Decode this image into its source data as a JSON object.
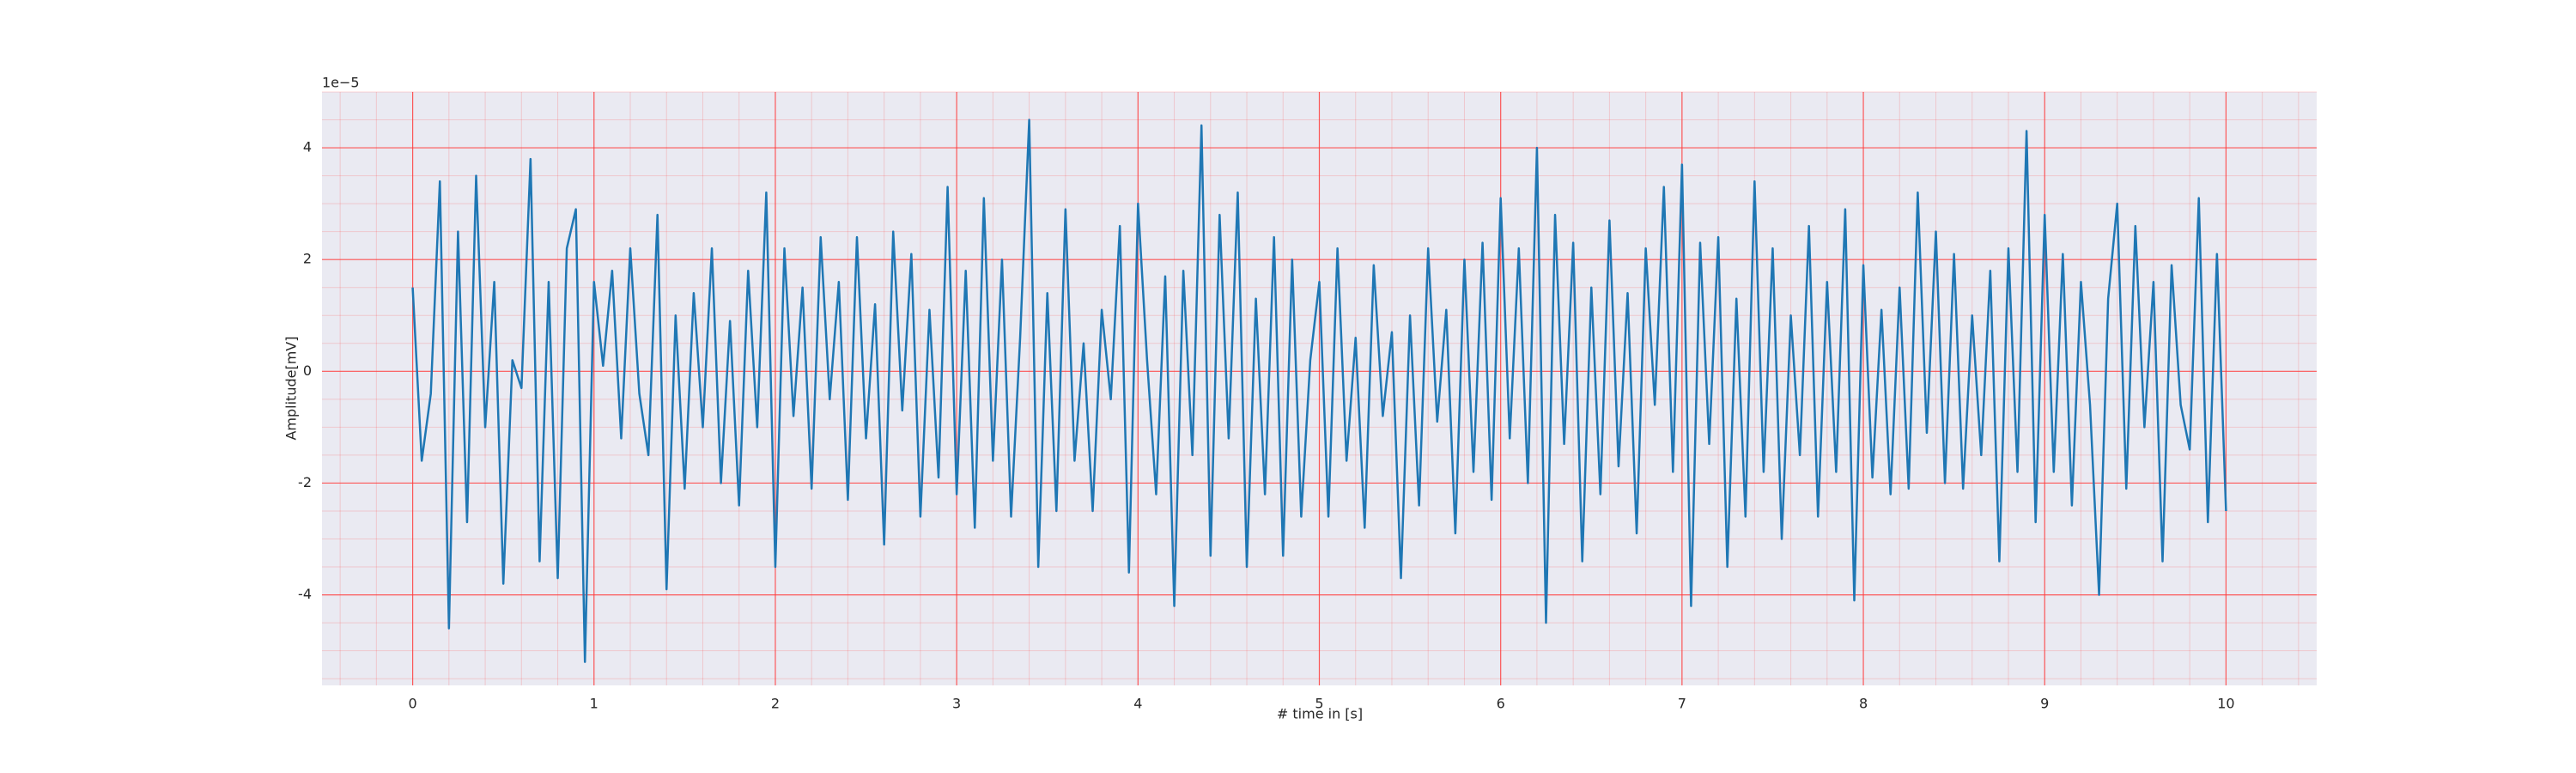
{
  "chart_data": {
    "type": "line",
    "xlabel": "# time in [s]",
    "ylabel": "Amplitude[mV]",
    "offset_text": "1e−5",
    "xlim": [
      -0.5,
      10.5
    ],
    "ylim": [
      -5.62,
      5.0
    ],
    "xticks": [
      0,
      1,
      2,
      3,
      4,
      5,
      6,
      7,
      8,
      9,
      10
    ],
    "yticks": [
      -4,
      -2,
      0,
      2,
      4
    ],
    "grid": true,
    "grid_color": "#ff3b3b",
    "minor_grid": true,
    "background": "#eaeaf2",
    "x": [
      0,
      0.05,
      0.1,
      0.15,
      0.2,
      0.25,
      0.3,
      0.35,
      0.4,
      0.45,
      0.5,
      0.55,
      0.6,
      0.65,
      0.7,
      0.75,
      0.8,
      0.85,
      0.9,
      0.95,
      1,
      1.05,
      1.1,
      1.15,
      1.2,
      1.25,
      1.3,
      1.35,
      1.4,
      1.45,
      1.5,
      1.55,
      1.6,
      1.65,
      1.7,
      1.75,
      1.8,
      1.85,
      1.9,
      1.95,
      2,
      2.05,
      2.1,
      2.15,
      2.2,
      2.25,
      2.3,
      2.35,
      2.4,
      2.45,
      2.5,
      2.55,
      2.6,
      2.65,
      2.7,
      2.75,
      2.8,
      2.85,
      2.9,
      2.95,
      3,
      3.05,
      3.1,
      3.15,
      3.2,
      3.25,
      3.3,
      3.35,
      3.4,
      3.45,
      3.5,
      3.55,
      3.6,
      3.65,
      3.7,
      3.75,
      3.8,
      3.85,
      3.9,
      3.95,
      4,
      4.05,
      4.1,
      4.15,
      4.2,
      4.25,
      4.3,
      4.35,
      4.4,
      4.45,
      4.5,
      4.55,
      4.6,
      4.65,
      4.7,
      4.75,
      4.8,
      4.85,
      4.9,
      4.95,
      5,
      5.05,
      5.1,
      5.15,
      5.2,
      5.25,
      5.3,
      5.35,
      5.4,
      5.45,
      5.5,
      5.55,
      5.6,
      5.65,
      5.7,
      5.75,
      5.8,
      5.85,
      5.9,
      5.95,
      6,
      6.05,
      6.1,
      6.15,
      6.2,
      6.25,
      6.3,
      6.35,
      6.4,
      6.45,
      6.5,
      6.55,
      6.6,
      6.65,
      6.7,
      6.75,
      6.8,
      6.85,
      6.9,
      6.95,
      7,
      7.05,
      7.1,
      7.15,
      7.2,
      7.25,
      7.3,
      7.35,
      7.4,
      7.45,
      7.5,
      7.55,
      7.6,
      7.65,
      7.7,
      7.75,
      7.8,
      7.85,
      7.9,
      7.95,
      8,
      8.05,
      8.1,
      8.15,
      8.2,
      8.25,
      8.3,
      8.35,
      8.4,
      8.45,
      8.5,
      8.55,
      8.6,
      8.65,
      8.7,
      8.75,
      8.8,
      8.85,
      8.9,
      8.95,
      9,
      9.05,
      9.1,
      9.15,
      9.2,
      9.25,
      9.3,
      9.35,
      9.4,
      9.45,
      9.5,
      9.55,
      9.6,
      9.65,
      9.7,
      9.75,
      9.8,
      9.85,
      9.9,
      9.95,
      10
    ],
    "series": [
      {
        "color": "#1f77b4",
        "values": [
          1.5,
          -1.6,
          -0.4,
          3.4,
          -4.6,
          2.5,
          -2.7,
          3.5,
          -1.0,
          1.6,
          -3.8,
          0.2,
          -0.3,
          3.8,
          -3.4,
          1.6,
          -3.7,
          2.2,
          2.9,
          -5.2,
          1.6,
          0.1,
          1.8,
          -1.2,
          2.2,
          -0.4,
          -1.5,
          2.8,
          -3.9,
          1.0,
          -2.1,
          1.4,
          -1.0,
          2.2,
          -2.0,
          0.9,
          -2.4,
          1.8,
          -1.0,
          3.2,
          -3.5,
          2.2,
          -0.8,
          1.5,
          -2.1,
          2.4,
          -0.5,
          1.6,
          -2.3,
          2.4,
          -1.2,
          1.2,
          -3.1,
          2.5,
          -0.7,
          2.1,
          -2.6,
          1.1,
          -1.9,
          3.3,
          -2.2,
          1.8,
          -2.8,
          3.1,
          -1.6,
          2.0,
          -2.6,
          0.6,
          4.5,
          -3.5,
          1.4,
          -2.5,
          2.9,
          -1.6,
          0.5,
          -2.5,
          1.1,
          -0.5,
          2.6,
          -3.6,
          3.0,
          0.2,
          -2.2,
          1.7,
          -4.2,
          1.8,
          -1.5,
          4.4,
          -3.3,
          2.8,
          -1.2,
          3.2,
          -3.5,
          1.3,
          -2.2,
          2.4,
          -3.3,
          2.0,
          -2.6,
          0.2,
          1.6,
          -2.6,
          2.2,
          -1.6,
          0.6,
          -2.8,
          1.9,
          -0.8,
          0.7,
          -3.7,
          1.0,
          -2.4,
          2.2,
          -0.9,
          1.1,
          -2.9,
          2.0,
          -1.8,
          2.3,
          -2.3,
          3.1,
          -1.2,
          2.2,
          -2.0,
          4.0,
          -4.5,
          2.8,
          -1.3,
          2.3,
          -3.4,
          1.5,
          -2.2,
          2.7,
          -1.7,
          1.4,
          -2.9,
          2.2,
          -0.6,
          3.3,
          -1.8,
          3.7,
          -4.2,
          2.3,
          -1.3,
          2.4,
          -3.5,
          1.3,
          -2.6,
          3.4,
          -1.8,
          2.2,
          -3.0,
          1.0,
          -1.5,
          2.6,
          -2.6,
          1.6,
          -1.8,
          2.9,
          -4.1,
          1.9,
          -1.9,
          1.1,
          -2.2,
          1.5,
          -2.1,
          3.2,
          -1.1,
          2.5,
          -2.0,
          2.1,
          -2.1,
          1.0,
          -1.5,
          1.8,
          -3.4,
          2.2,
          -1.8,
          4.3,
          -2.7,
          2.8,
          -1.8,
          2.1,
          -2.4,
          1.6,
          -0.6,
          -4.0,
          1.3,
          3.0,
          -2.1,
          2.6,
          -1.0,
          1.6,
          -3.4,
          1.9,
          -0.6,
          -1.4,
          3.1,
          -2.7,
          2.1,
          -2.5
        ]
      }
    ]
  }
}
